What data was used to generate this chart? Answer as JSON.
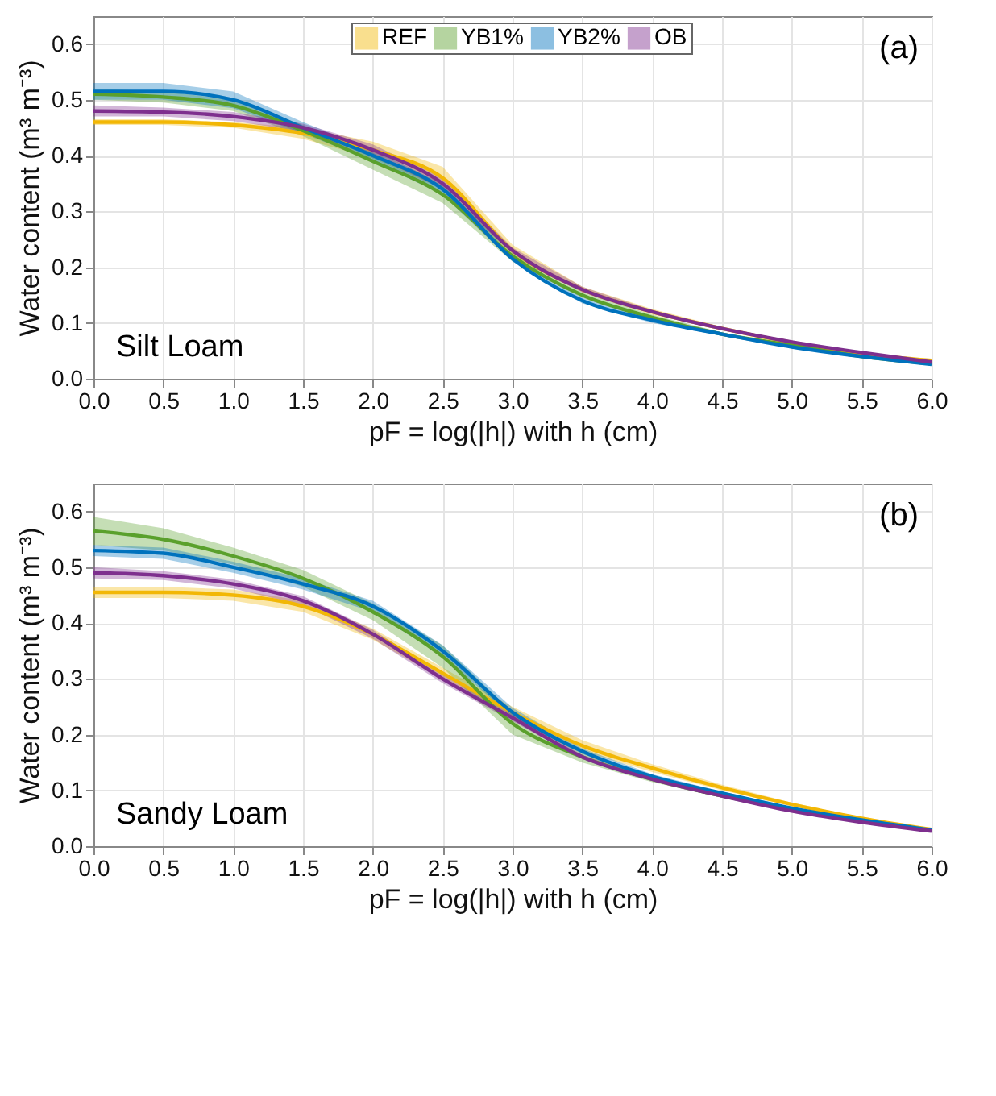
{
  "chart_data": [
    {
      "type": "line",
      "xlabel": "pF = log(|h|) with h (cm)",
      "ylabel": "Water content (m³ m⁻³)",
      "annotations": [
        "(a)",
        "Silt Loam"
      ],
      "x": [
        0,
        0.5,
        1,
        1.5,
        2,
        2.5,
        3,
        3.5,
        4,
        4.5,
        5,
        5.5,
        6
      ],
      "series": [
        {
          "name": "REF",
          "color": "#f2b705",
          "values": [
            0.46,
            0.46,
            0.455,
            0.44,
            0.41,
            0.36,
            0.23,
            0.16,
            0.12,
            0.09,
            0.065,
            0.045,
            0.033
          ],
          "lower": [
            0.455,
            0.455,
            0.45,
            0.43,
            0.395,
            0.34,
            0.22,
            0.155,
            0.115,
            0.087,
            0.063,
            0.044,
            0.032
          ],
          "upper": [
            0.465,
            0.465,
            0.46,
            0.45,
            0.425,
            0.38,
            0.24,
            0.165,
            0.125,
            0.093,
            0.067,
            0.046,
            0.034
          ]
        },
        {
          "name": "YB1%",
          "color": "#5aa02c",
          "values": [
            0.51,
            0.505,
            0.49,
            0.445,
            0.39,
            0.33,
            0.22,
            0.15,
            0.11,
            0.08,
            0.06,
            0.04,
            0.027
          ],
          "lower": [
            0.5,
            0.495,
            0.48,
            0.435,
            0.375,
            0.315,
            0.21,
            0.145,
            0.105,
            0.077,
            0.058,
            0.039,
            0.026
          ],
          "upper": [
            0.52,
            0.515,
            0.5,
            0.455,
            0.405,
            0.345,
            0.23,
            0.155,
            0.115,
            0.083,
            0.062,
            0.041,
            0.028
          ]
        },
        {
          "name": "YB2%",
          "color": "#0072bd",
          "values": [
            0.515,
            0.515,
            0.5,
            0.45,
            0.4,
            0.34,
            0.215,
            0.14,
            0.105,
            0.08,
            0.057,
            0.04,
            0.026
          ],
          "lower": [
            0.5,
            0.5,
            0.485,
            0.44,
            0.39,
            0.33,
            0.21,
            0.135,
            0.1,
            0.077,
            0.055,
            0.039,
            0.025
          ],
          "upper": [
            0.53,
            0.53,
            0.515,
            0.46,
            0.41,
            0.35,
            0.22,
            0.145,
            0.11,
            0.083,
            0.059,
            0.041,
            0.027
          ]
        },
        {
          "name": "OB",
          "color": "#7e2f8e",
          "values": [
            0.48,
            0.478,
            0.47,
            0.45,
            0.41,
            0.35,
            0.23,
            0.16,
            0.12,
            0.09,
            0.066,
            0.047,
            0.03
          ],
          "lower": [
            0.47,
            0.47,
            0.462,
            0.443,
            0.4,
            0.34,
            0.225,
            0.155,
            0.117,
            0.088,
            0.064,
            0.046,
            0.029
          ],
          "upper": [
            0.49,
            0.486,
            0.478,
            0.457,
            0.42,
            0.36,
            0.235,
            0.165,
            0.123,
            0.092,
            0.068,
            0.048,
            0.031
          ]
        }
      ],
      "xlim": [
        0,
        6
      ],
      "xticks": [
        {
          "value": 0,
          "label": "0.0"
        },
        0.5,
        {
          "value": 1,
          "label": "1.0"
        },
        1.5,
        {
          "value": 2,
          "label": "2.0"
        },
        2.5,
        {
          "value": 3,
          "label": "3.0"
        },
        3.5,
        {
          "value": 4,
          "label": "4.0"
        },
        4.5,
        {
          "value": 5,
          "label": "5.0"
        },
        5.5,
        {
          "value": 6,
          "label": "6.0"
        }
      ],
      "ylim": [
        0,
        0.65
      ],
      "yticks": [
        {
          "value": 0,
          "label": "0.0"
        },
        0.1,
        0.2,
        0.3,
        0.4,
        0.5,
        0.6
      ],
      "grid": true,
      "legend": "top"
    },
    {
      "type": "line",
      "xlabel": "pF = log(|h|) with h (cm)",
      "ylabel": "Water content (m³ m⁻³)",
      "annotations": [
        "(b)",
        "Sandy Loam"
      ],
      "x": [
        0,
        0.5,
        1,
        1.5,
        2,
        2.5,
        3,
        3.5,
        4,
        4.5,
        5,
        5.5,
        6
      ],
      "series": [
        {
          "name": "REF",
          "color": "#f2b705",
          "values": [
            0.455,
            0.455,
            0.45,
            0.43,
            0.38,
            0.31,
            0.24,
            0.18,
            0.14,
            0.105,
            0.075,
            0.05,
            0.03
          ],
          "lower": [
            0.445,
            0.445,
            0.44,
            0.42,
            0.37,
            0.3,
            0.23,
            0.17,
            0.133,
            0.1,
            0.072,
            0.048,
            0.029
          ],
          "upper": [
            0.465,
            0.465,
            0.46,
            0.44,
            0.39,
            0.32,
            0.25,
            0.19,
            0.147,
            0.11,
            0.078,
            0.052,
            0.031
          ]
        },
        {
          "name": "YB1%",
          "color": "#5aa02c",
          "values": [
            0.565,
            0.55,
            0.52,
            0.48,
            0.42,
            0.34,
            0.22,
            0.16,
            0.12,
            0.09,
            0.065,
            0.045,
            0.028
          ],
          "lower": [
            0.54,
            0.53,
            0.505,
            0.465,
            0.405,
            0.32,
            0.2,
            0.15,
            0.115,
            0.087,
            0.063,
            0.044,
            0.027
          ],
          "upper": [
            0.59,
            0.57,
            0.535,
            0.495,
            0.435,
            0.36,
            0.24,
            0.17,
            0.125,
            0.093,
            0.067,
            0.046,
            0.029
          ]
        },
        {
          "name": "YB2%",
          "color": "#0072bd",
          "values": [
            0.53,
            0.525,
            0.5,
            0.47,
            0.43,
            0.35,
            0.24,
            0.17,
            0.125,
            0.095,
            0.068,
            0.047,
            0.029
          ],
          "lower": [
            0.52,
            0.515,
            0.49,
            0.46,
            0.42,
            0.34,
            0.232,
            0.165,
            0.121,
            0.092,
            0.066,
            0.046,
            0.028
          ],
          "upper": [
            0.54,
            0.535,
            0.51,
            0.48,
            0.44,
            0.36,
            0.248,
            0.175,
            0.129,
            0.098,
            0.07,
            0.048,
            0.03
          ]
        },
        {
          "name": "OB",
          "color": "#7e2f8e",
          "values": [
            0.49,
            0.485,
            0.47,
            0.44,
            0.38,
            0.3,
            0.23,
            0.16,
            0.12,
            0.09,
            0.063,
            0.043,
            0.027
          ],
          "lower": [
            0.48,
            0.477,
            0.462,
            0.432,
            0.372,
            0.292,
            0.224,
            0.156,
            0.117,
            0.088,
            0.061,
            0.042,
            0.026
          ],
          "upper": [
            0.5,
            0.493,
            0.478,
            0.448,
            0.388,
            0.308,
            0.236,
            0.164,
            0.123,
            0.092,
            0.065,
            0.044,
            0.028
          ]
        }
      ],
      "xlim": [
        0,
        6
      ],
      "xticks": [
        {
          "value": 0,
          "label": "0.0"
        },
        0.5,
        {
          "value": 1,
          "label": "1.0"
        },
        1.5,
        {
          "value": 2,
          "label": "2.0"
        },
        2.5,
        {
          "value": 3,
          "label": "3.0"
        },
        3.5,
        {
          "value": 4,
          "label": "4.0"
        },
        4.5,
        {
          "value": 5,
          "label": "5.0"
        },
        5.5,
        {
          "value": 6,
          "label": "6.0"
        }
      ],
      "ylim": [
        0,
        0.65
      ],
      "yticks": [
        {
          "value": 0,
          "label": "0.0"
        },
        0.1,
        0.2,
        0.3,
        0.4,
        0.5,
        0.6
      ],
      "grid": true,
      "legend": "top"
    }
  ]
}
